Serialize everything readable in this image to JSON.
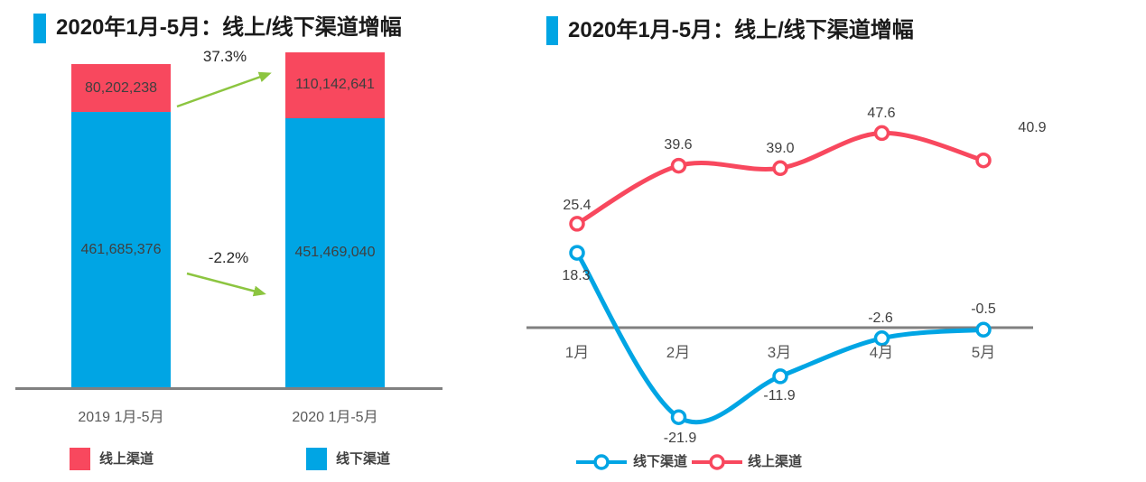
{
  "accent_colors": {
    "online_red": "#F8485E",
    "offline_blue": "#00A5E4",
    "arrow_green": "#8CC540",
    "axis_gray": "#808080"
  },
  "chart_data": [
    {
      "id": "stacked-bar-online-offline",
      "type": "bar",
      "stacked": true,
      "title": "2020年1月-5月：线上/线下渠道增幅",
      "categories": [
        "2019 1月-5月",
        "2020 1月-5月"
      ],
      "series": [
        {
          "name": "线上渠道",
          "color": "#F8485E",
          "values": [
            80202238,
            110142641
          ],
          "labels": [
            "80,202,238",
            "110,142,641"
          ]
        },
        {
          "name": "线下渠道",
          "color": "#00A5E4",
          "values": [
            461685376,
            451469040
          ],
          "labels": [
            "461,685,376",
            "451,469,040"
          ]
        }
      ],
      "annotations": [
        {
          "label": "37.3%",
          "meaning": "online channel growth 2019→2020",
          "direction": "up"
        },
        {
          "label": "-2.2%",
          "meaning": "offline channel decline 2019→2020",
          "direction": "down"
        }
      ],
      "legend": [
        "线上渠道",
        "线下渠道"
      ],
      "legend_position": "bottom",
      "grid": false
    },
    {
      "id": "line-monthly-growth",
      "type": "line",
      "title": "2020年1月-5月：线上/线下渠道增幅",
      "categories": [
        "1月",
        "2月",
        "3月",
        "4月",
        "5月"
      ],
      "series": [
        {
          "name": "线下渠道",
          "color": "#00A5E4",
          "values": [
            18.3,
            -21.9,
            -11.9,
            -2.6,
            -0.5
          ],
          "labels": [
            "18.3",
            "-21.9",
            "-11.9",
            "-2.6",
            "-0.5"
          ]
        },
        {
          "name": "线上渠道",
          "color": "#F8485E",
          "values": [
            25.4,
            39.6,
            39.0,
            47.6,
            40.9
          ],
          "labels": [
            "25.4",
            "39.6",
            "39.0",
            "47.6",
            "40.9"
          ]
        }
      ],
      "legend": [
        "线下渠道",
        "线上渠道"
      ],
      "legend_position": "bottom",
      "ylim": [
        -30,
        55
      ],
      "grid": false,
      "zero_axis": true
    }
  ]
}
